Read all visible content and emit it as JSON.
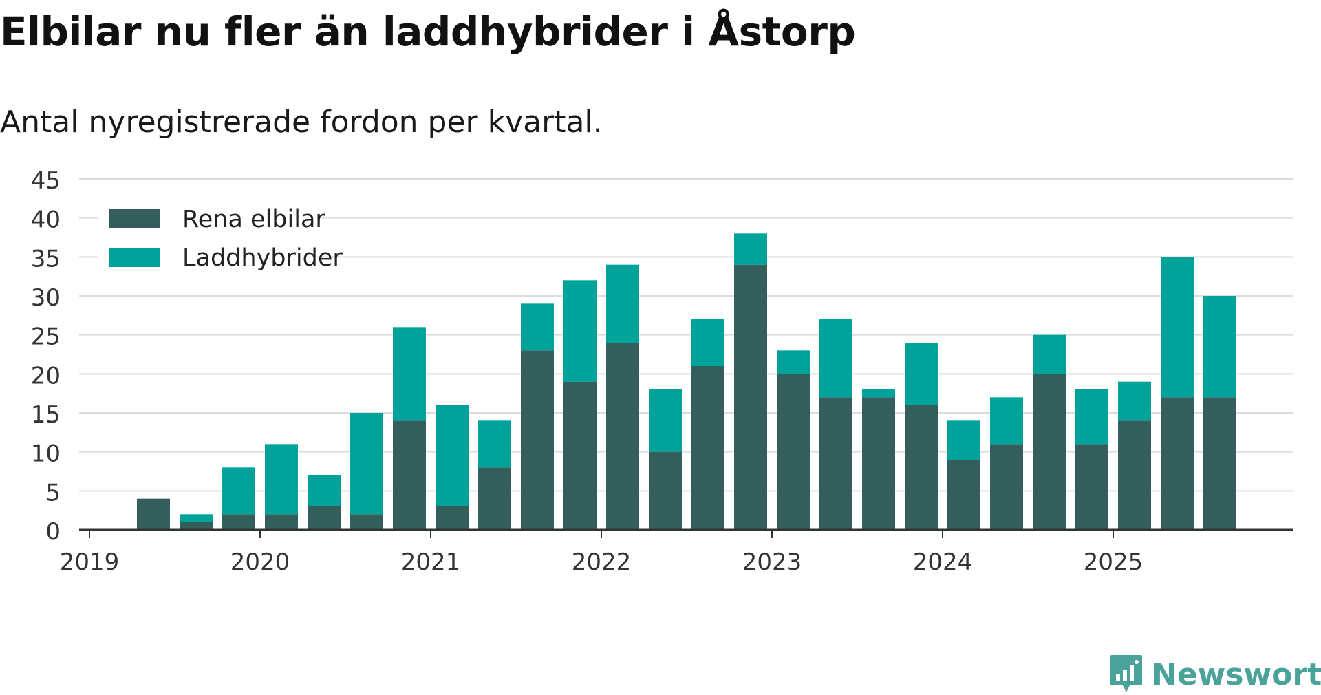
{
  "title": "Elbilar nu fler än laddhybrider i Åstorp",
  "subtitle": "Antal nyregistrerade fordon per kvartal.",
  "brand": {
    "name": "Newsworthy",
    "icon": "newsworthy-logo-icon",
    "color": "#4aa39a"
  },
  "colors": {
    "elbilar": "#335e5b",
    "laddhybrider": "#00a39a",
    "grid": "#dddddd",
    "axis": "#333333"
  },
  "chart_data": {
    "type": "bar",
    "stacked": true,
    "title": "Elbilar nu fler än laddhybrider i Åstorp",
    "subtitle": "Antal nyregistrerade fordon per kvartal.",
    "xlabel": "",
    "ylabel": "",
    "ylim": [
      0,
      45
    ],
    "yticks": [
      0,
      5,
      10,
      15,
      20,
      25,
      30,
      35,
      40,
      45
    ],
    "xticks": [
      "2019",
      "2020",
      "2021",
      "2022",
      "2023",
      "2024",
      "2025"
    ],
    "grid": true,
    "legend": "top-left",
    "categories": [
      "2019 K1",
      "2019 K2",
      "2019 K3",
      "2019 K4",
      "2020 K1",
      "2020 K2",
      "2020 K3",
      "2020 K4",
      "2021 K1",
      "2021 K2",
      "2021 K3",
      "2021 K4",
      "2022 K1",
      "2022 K2",
      "2022 K3",
      "2022 K4",
      "2023 K1",
      "2023 K2",
      "2023 K3",
      "2023 K4",
      "2024 K1",
      "2024 K2",
      "2024 K3",
      "2024 K4",
      "2025 K1",
      "2025 K2",
      "2025 K3"
    ],
    "series": [
      {
        "name": "Rena elbilar",
        "values": [
          0,
          4,
          1,
          2,
          2,
          3,
          2,
          14,
          3,
          8,
          23,
          19,
          24,
          10,
          21,
          34,
          20,
          17,
          17,
          16,
          9,
          11,
          20,
          11,
          14,
          17,
          17
        ]
      },
      {
        "name": "Laddhybrider",
        "values": [
          0,
          0,
          1,
          6,
          9,
          4,
          13,
          12,
          13,
          6,
          6,
          13,
          10,
          8,
          6,
          4,
          3,
          10,
          1,
          8,
          5,
          6,
          5,
          7,
          5,
          18,
          13
        ]
      }
    ]
  }
}
